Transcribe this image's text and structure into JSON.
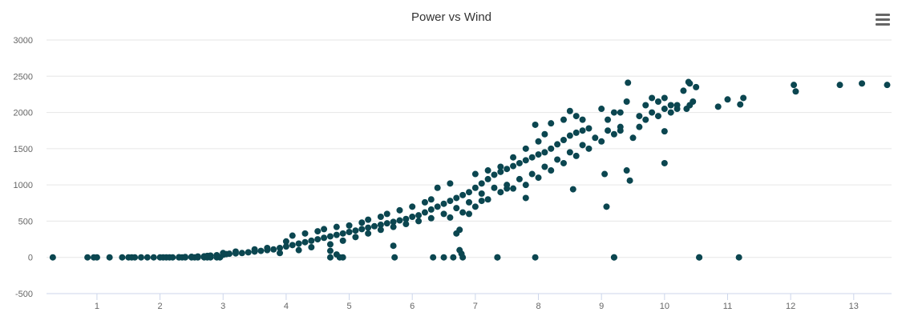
{
  "chart_data": {
    "type": "scatter",
    "title": "Power vs Wind",
    "xlabel": "",
    "ylabel": "",
    "xlim": [
      0.2,
      13.6
    ],
    "ylim": [
      -500,
      3000
    ],
    "x_ticks": [
      1,
      2,
      3,
      4,
      5,
      6,
      7,
      8,
      9,
      10,
      11,
      12,
      13
    ],
    "y_ticks": [
      -500,
      0,
      500,
      1000,
      1500,
      2000,
      2500,
      3000
    ],
    "grid": "horizontal",
    "legend": "none",
    "marker_color": "#0b4650",
    "series": [
      {
        "points": [
          [
            0.3,
            0
          ],
          [
            0.85,
            0
          ],
          [
            0.95,
            0
          ],
          [
            1.0,
            0
          ],
          [
            1.2,
            0
          ],
          [
            1.4,
            0
          ],
          [
            1.5,
            0
          ],
          [
            1.55,
            0
          ],
          [
            1.6,
            0
          ],
          [
            1.7,
            0
          ],
          [
            1.8,
            0
          ],
          [
            1.9,
            0
          ],
          [
            2.0,
            0
          ],
          [
            2.05,
            0
          ],
          [
            2.1,
            0
          ],
          [
            2.15,
            0
          ],
          [
            2.2,
            0
          ],
          [
            2.3,
            0
          ],
          [
            2.35,
            0
          ],
          [
            2.4,
            0
          ],
          [
            2.5,
            0
          ],
          [
            2.55,
            0
          ],
          [
            2.6,
            0
          ],
          [
            2.7,
            0
          ],
          [
            2.75,
            0
          ],
          [
            2.8,
            0
          ],
          [
            2.9,
            0
          ],
          [
            2.95,
            0
          ],
          [
            2.3,
            2
          ],
          [
            2.4,
            5
          ],
          [
            2.5,
            8
          ],
          [
            2.6,
            12
          ],
          [
            2.7,
            15
          ],
          [
            2.75,
            20
          ],
          [
            2.8,
            25
          ],
          [
            2.9,
            30
          ],
          [
            3.0,
            35
          ],
          [
            3.05,
            45
          ],
          [
            3.1,
            50
          ],
          [
            3.2,
            55
          ],
          [
            3.3,
            60
          ],
          [
            3.4,
            70
          ],
          [
            3.5,
            80
          ],
          [
            3.6,
            90
          ],
          [
            3.7,
            100
          ],
          [
            3.8,
            110
          ],
          [
            3.9,
            130
          ],
          [
            4.0,
            150
          ],
          [
            4.1,
            170
          ],
          [
            4.2,
            190
          ],
          [
            4.3,
            210
          ],
          [
            4.4,
            230
          ],
          [
            4.5,
            250
          ],
          [
            4.6,
            270
          ],
          [
            4.7,
            290
          ],
          [
            4.8,
            310
          ],
          [
            4.9,
            330
          ],
          [
            5.0,
            350
          ],
          [
            5.1,
            370
          ],
          [
            5.2,
            390
          ],
          [
            5.3,
            410
          ],
          [
            5.4,
            430
          ],
          [
            5.5,
            450
          ],
          [
            5.6,
            470
          ],
          [
            5.7,
            490
          ],
          [
            5.8,
            510
          ],
          [
            5.9,
            530
          ],
          [
            6.0,
            560
          ],
          [
            3.0,
            60
          ],
          [
            3.2,
            80
          ],
          [
            3.5,
            110
          ],
          [
            3.7,
            130
          ],
          [
            4.0,
            220
          ],
          [
            4.1,
            300
          ],
          [
            4.3,
            330
          ],
          [
            4.5,
            360
          ],
          [
            4.6,
            390
          ],
          [
            4.8,
            420
          ],
          [
            5.0,
            440
          ],
          [
            5.2,
            480
          ],
          [
            5.3,
            520
          ],
          [
            5.5,
            560
          ],
          [
            5.6,
            600
          ],
          [
            5.8,
            650
          ],
          [
            6.0,
            700
          ],
          [
            6.2,
            760
          ],
          [
            6.3,
            800
          ],
          [
            3.9,
            60
          ],
          [
            4.2,
            100
          ],
          [
            4.4,
            140
          ],
          [
            4.7,
            180
          ],
          [
            4.9,
            230
          ],
          [
            5.1,
            280
          ],
          [
            5.3,
            330
          ],
          [
            5.5,
            380
          ],
          [
            5.7,
            420
          ],
          [
            5.9,
            460
          ],
          [
            6.1,
            500
          ],
          [
            6.3,
            540
          ],
          [
            6.1,
            580
          ],
          [
            6.2,
            620
          ],
          [
            6.3,
            660
          ],
          [
            6.4,
            700
          ],
          [
            6.5,
            740
          ],
          [
            6.6,
            780
          ],
          [
            6.7,
            820
          ],
          [
            6.8,
            860
          ],
          [
            6.9,
            900
          ],
          [
            7.0,
            960
          ],
          [
            7.1,
            1020
          ],
          [
            7.2,
            1080
          ],
          [
            7.3,
            1140
          ],
          [
            7.4,
            1180
          ],
          [
            7.5,
            1220
          ],
          [
            7.6,
            1260
          ],
          [
            7.7,
            1300
          ],
          [
            7.8,
            1340
          ],
          [
            7.9,
            1380
          ],
          [
            8.0,
            1420
          ],
          [
            8.1,
            1450
          ],
          [
            8.2,
            1500
          ],
          [
            8.3,
            1560
          ],
          [
            8.4,
            1620
          ],
          [
            8.5,
            1680
          ],
          [
            8.6,
            1720
          ],
          [
            8.7,
            1750
          ],
          [
            8.8,
            1780
          ],
          [
            6.5,
            600
          ],
          [
            6.7,
            680
          ],
          [
            6.9,
            760
          ],
          [
            7.1,
            880
          ],
          [
            7.3,
            960
          ],
          [
            7.5,
            1000
          ],
          [
            7.7,
            1080
          ],
          [
            7.9,
            1150
          ],
          [
            8.1,
            1250
          ],
          [
            8.3,
            1350
          ],
          [
            8.5,
            1450
          ],
          [
            8.7,
            1550
          ],
          [
            8.9,
            1650
          ],
          [
            9.1,
            1750
          ],
          [
            9.3,
            1800
          ],
          [
            6.6,
            550
          ],
          [
            6.8,
            620
          ],
          [
            7.0,
            700
          ],
          [
            7.2,
            800
          ],
          [
            7.4,
            900
          ],
          [
            7.6,
            950
          ],
          [
            7.8,
            1000
          ],
          [
            8.0,
            1100
          ],
          [
            8.2,
            1200
          ],
          [
            8.4,
            1300
          ],
          [
            8.6,
            1400
          ],
          [
            8.8,
            1500
          ],
          [
            6.4,
            960
          ],
          [
            6.6,
            1020
          ],
          [
            7.0,
            1150
          ],
          [
            7.2,
            1200
          ],
          [
            7.4,
            1250
          ],
          [
            7.6,
            1380
          ],
          [
            7.8,
            1500
          ],
          [
            8.0,
            1600
          ],
          [
            8.1,
            1700
          ],
          [
            7.95,
            1830
          ],
          [
            8.2,
            1850
          ],
          [
            8.4,
            1900
          ],
          [
            8.5,
            2020
          ],
          [
            8.6,
            1950
          ],
          [
            8.7,
            1900
          ],
          [
            9.0,
            2050
          ],
          [
            9.1,
            1900
          ],
          [
            9.2,
            2000
          ],
          [
            9.3,
            2000
          ],
          [
            9.4,
            2150
          ],
          [
            9.6,
            1950
          ],
          [
            9.7,
            2100
          ],
          [
            9.8,
            2200
          ],
          [
            9.9,
            2150
          ],
          [
            10.0,
            2200
          ],
          [
            10.1,
            2100
          ],
          [
            10.2,
            2100
          ],
          [
            10.3,
            2300
          ],
          [
            10.4,
            2400
          ],
          [
            10.5,
            2350
          ],
          [
            9.0,
            1600
          ],
          [
            9.2,
            1700
          ],
          [
            9.3,
            1750
          ],
          [
            9.5,
            1650
          ],
          [
            9.6,
            1800
          ],
          [
            9.7,
            1900
          ],
          [
            9.8,
            2000
          ],
          [
            9.9,
            1950
          ],
          [
            10.0,
            2050
          ],
          [
            10.1,
            2000
          ],
          [
            10.2,
            2050
          ],
          [
            10.35,
            2050
          ],
          [
            10.4,
            2100
          ],
          [
            9.42,
            2410
          ],
          [
            10.38,
            2420
          ],
          [
            10.45,
            2150
          ],
          [
            10.85,
            2080
          ],
          [
            11.0,
            2180
          ],
          [
            11.2,
            2110
          ],
          [
            11.25,
            2200
          ],
          [
            12.05,
            2380
          ],
          [
            12.08,
            2290
          ],
          [
            12.78,
            2380
          ],
          [
            13.13,
            2400
          ],
          [
            13.53,
            2380
          ],
          [
            10.0,
            1740
          ],
          [
            10.0,
            1300
          ],
          [
            9.05,
            1150
          ],
          [
            9.08,
            700
          ],
          [
            9.4,
            1200
          ],
          [
            9.45,
            1060
          ],
          [
            8.55,
            940
          ],
          [
            7.8,
            820
          ],
          [
            7.5,
            950
          ],
          [
            7.1,
            780
          ],
          [
            6.9,
            600
          ],
          [
            6.75,
            380
          ],
          [
            6.7,
            330
          ],
          [
            6.75,
            100
          ],
          [
            6.78,
            50
          ],
          [
            5.7,
            160
          ],
          [
            4.7,
            90
          ],
          [
            4.8,
            40
          ],
          [
            4.7,
            0
          ],
          [
            4.85,
            0
          ],
          [
            4.9,
            0
          ],
          [
            5.72,
            0
          ],
          [
            6.33,
            0
          ],
          [
            6.5,
            0
          ],
          [
            6.65,
            0
          ],
          [
            6.8,
            0
          ],
          [
            7.35,
            0
          ],
          [
            7.35,
            0
          ],
          [
            7.95,
            0
          ],
          [
            9.2,
            0
          ],
          [
            9.2,
            0
          ],
          [
            10.55,
            0
          ],
          [
            10.55,
            0
          ],
          [
            11.18,
            0
          ]
        ]
      }
    ]
  }
}
